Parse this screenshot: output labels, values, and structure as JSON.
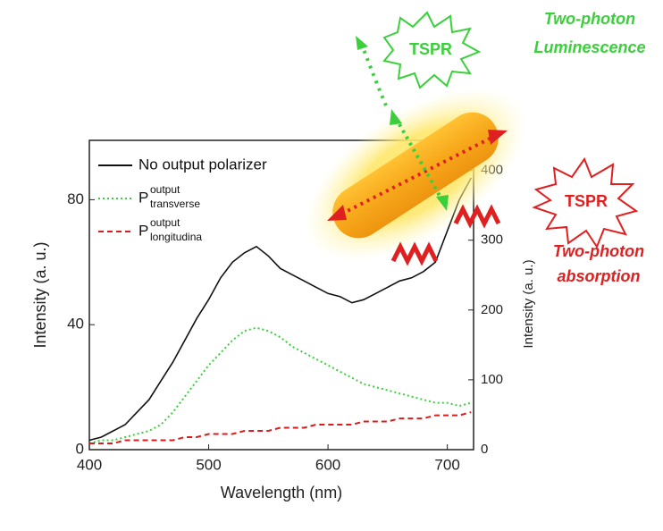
{
  "chart_data": {
    "type": "line",
    "xlabel": "Wavelength (nm)",
    "ylabel": "Intensity (a. u.)",
    "y2label": "Intensity (a. u.)",
    "x": [
      400,
      410,
      420,
      430,
      440,
      450,
      460,
      470,
      480,
      490,
      500,
      510,
      520,
      530,
      540,
      550,
      560,
      570,
      580,
      590,
      600,
      610,
      620,
      630,
      640,
      650,
      660,
      670,
      680,
      690,
      700,
      710,
      720
    ],
    "xlim": [
      400,
      722
    ],
    "xticks": [
      400,
      500,
      600,
      700
    ],
    "ylim": [
      0,
      99
    ],
    "yticks": [
      0,
      40,
      80
    ],
    "y2lim": [
      0,
      443
    ],
    "y2ticks": [
      0,
      100,
      200,
      300,
      400
    ],
    "series": [
      {
        "name": "No output polarizer",
        "color": "#111111",
        "style": "solid",
        "values": [
          3,
          4,
          6,
          8,
          12,
          16,
          22,
          28,
          35,
          42,
          48,
          55,
          60,
          63,
          65,
          62,
          58,
          56,
          54,
          52,
          50,
          49,
          47,
          48,
          50,
          52,
          54,
          55,
          57,
          60,
          70,
          80,
          87
        ]
      },
      {
        "name": "P",
        "name_sup": "output",
        "name_sub": "transverse",
        "color": "#3ccf3c",
        "style": "dotted",
        "values": [
          2,
          3,
          3,
          4,
          5,
          6,
          8,
          12,
          17,
          22,
          27,
          31,
          35,
          38,
          39,
          38,
          36,
          33,
          31,
          29,
          27,
          25,
          23,
          21,
          20,
          19,
          18,
          17,
          16,
          15,
          15,
          14,
          15
        ]
      },
      {
        "name": "P",
        "name_sup": "output",
        "name_sub": "longitudina",
        "color": "#d81e1e",
        "style": "dashed",
        "values": [
          2,
          2,
          2,
          3,
          3,
          3,
          3,
          3,
          4,
          4,
          5,
          5,
          5,
          6,
          6,
          6,
          7,
          7,
          7,
          8,
          8,
          8,
          8,
          9,
          9,
          9,
          10,
          10,
          10,
          11,
          11,
          11,
          12
        ]
      }
    ],
    "annotations": {
      "tspr_top": "TSPR",
      "tspr_right": "TSPR",
      "luminescence_1": "Two-photon",
      "luminescence_2": "Luminescence",
      "absorption_1": "Two-photon",
      "absorption_2": "absorption"
    }
  }
}
